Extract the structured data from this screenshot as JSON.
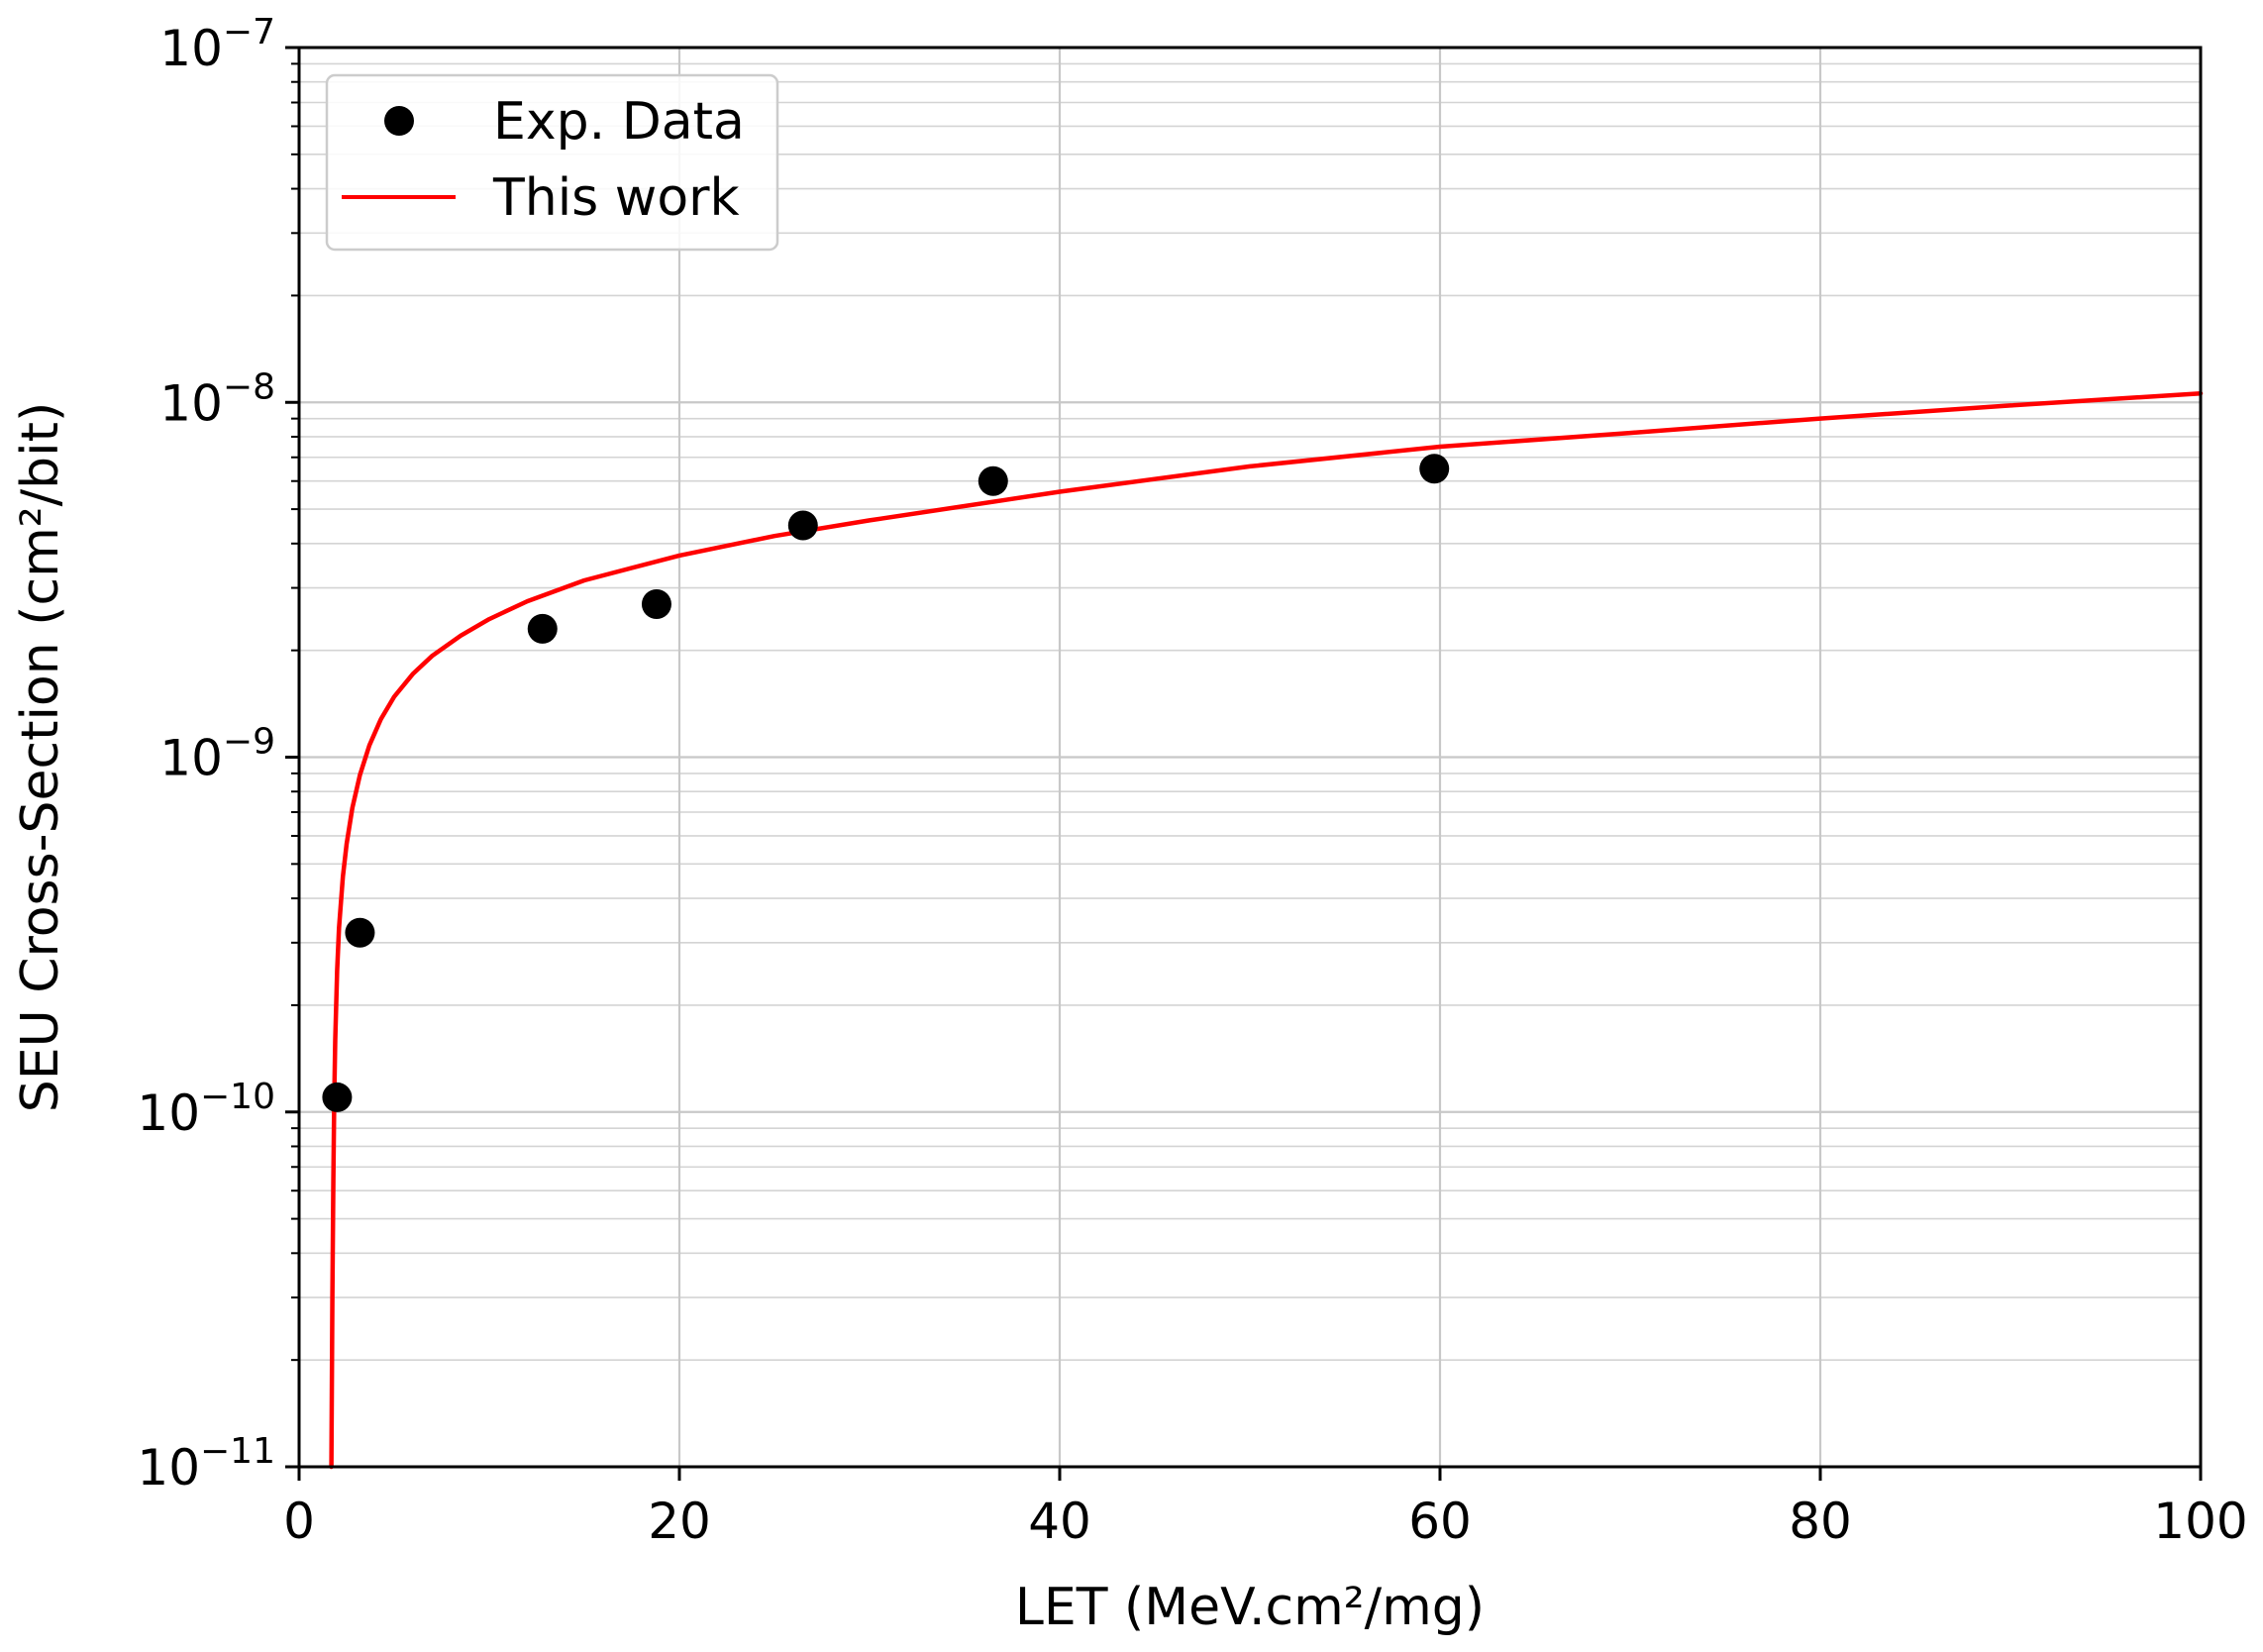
{
  "chart_data": {
    "type": "scatter",
    "xlabel": "LET (MeV.cm²/mg)",
    "ylabel": "SEU Cross-Section (cm²/bit)",
    "xlim": [
      0,
      100
    ],
    "ylim": [
      1e-11,
      1e-07
    ],
    "yscale": "log",
    "grid": "on (major and minor)",
    "legend_position": "upper-left",
    "x_ticks": [
      "0",
      "20",
      "40",
      "60",
      "80",
      "100"
    ],
    "y_ticks": [
      {
        "base": "10",
        "exp": "−11"
      },
      {
        "base": "10",
        "exp": "−10"
      },
      {
        "base": "10",
        "exp": "−9"
      },
      {
        "base": "10",
        "exp": "−8"
      },
      {
        "base": "10",
        "exp": "−7"
      }
    ],
    "series": [
      {
        "name": "Exp. Data",
        "kind": "scatter",
        "color": "#000000",
        "x": [
          2.0,
          3.2,
          12.8,
          18.8,
          26.5,
          36.5,
          59.7
        ],
        "y": [
          1.1e-10,
          3.2e-10,
          2.3e-09,
          2.7e-09,
          4.5e-09,
          6e-09,
          6.5e-09
        ]
      },
      {
        "name": "This work",
        "kind": "line",
        "color": "#ff0000",
        "x": [
          1.7,
          1.75,
          1.8,
          1.85,
          1.9,
          2.0,
          2.1,
          2.3,
          2.5,
          2.8,
          3.2,
          3.7,
          4.3,
          5.0,
          6.0,
          7.0,
          8.5,
          10,
          12,
          15,
          20,
          25,
          30,
          40,
          50,
          60,
          70,
          80,
          90,
          100
        ],
        "y": [
          1e-11,
          3e-11,
          6.5e-11,
          1.1e-10,
          1.6e-10,
          2.5e-10,
          3.3e-10,
          4.6e-10,
          5.7e-10,
          7.2e-10,
          8.9e-10,
          1.08e-09,
          1.28e-09,
          1.48e-09,
          1.72e-09,
          1.93e-09,
          2.2e-09,
          2.45e-09,
          2.75e-09,
          3.15e-09,
          3.7e-09,
          4.2e-09,
          4.65e-09,
          5.6e-09,
          6.6e-09,
          7.5e-09,
          8.2e-09,
          9e-09,
          9.8e-09,
          1.06e-08
        ]
      }
    ]
  }
}
